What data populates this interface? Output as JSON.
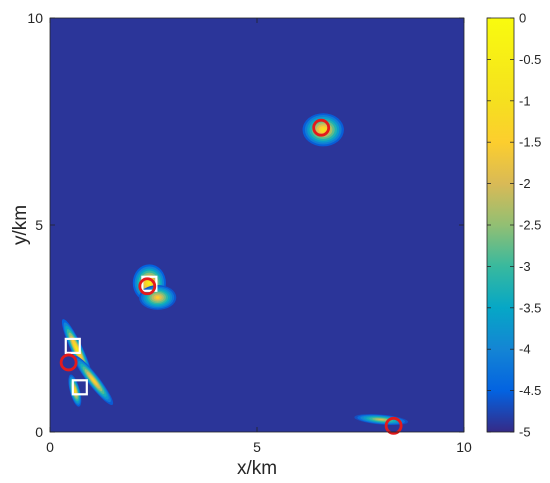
{
  "chart_data": {
    "type": "heatmap",
    "title": "",
    "xlabel": "x/km",
    "ylabel": "y/km",
    "xlim": [
      0,
      10
    ],
    "ylim": [
      0,
      10
    ],
    "x_ticks": [
      0,
      5,
      10
    ],
    "y_ticks": [
      0,
      5,
      10
    ],
    "x_tick_labels": [
      "0",
      "5",
      "10"
    ],
    "y_tick_labels": [
      "0",
      "5",
      "10"
    ],
    "colorbar": {
      "range": [
        -5,
        0
      ],
      "colormap": "parula",
      "ticks": [
        0,
        -0.5,
        -1,
        -1.5,
        -2,
        -2.5,
        -3,
        -3.5,
        -4,
        -4.5,
        -5
      ],
      "tick_labels": [
        "0",
        "-0.5",
        "-1",
        "-1.5",
        "-2",
        "-2.5",
        "-3",
        "-3.5",
        "-4",
        "-4.5",
        "-5"
      ]
    },
    "background_value": -5,
    "hotspots": [
      {
        "x": 6.6,
        "y": 7.3,
        "rx": 0.5,
        "ry": 0.4,
        "angle": 0,
        "peak": -1.0
      },
      {
        "x": 2.4,
        "y": 3.6,
        "rx": 0.4,
        "ry": 0.45,
        "angle": 0,
        "peak": -0.6
      },
      {
        "x": 2.6,
        "y": 3.25,
        "rx": 0.45,
        "ry": 0.3,
        "angle": 0,
        "peak": -1.5
      },
      {
        "x": 0.65,
        "y": 2.0,
        "rx": 0.14,
        "ry": 0.8,
        "angle": 25,
        "peak": -0.5
      },
      {
        "x": 1.05,
        "y": 1.25,
        "rx": 0.14,
        "ry": 0.75,
        "angle": 38,
        "peak": -1.2
      },
      {
        "x": 0.6,
        "y": 1.0,
        "rx": 0.12,
        "ry": 0.4,
        "angle": 15,
        "peak": -0.9
      },
      {
        "x": 8.0,
        "y": 0.3,
        "rx": 0.65,
        "ry": 0.12,
        "angle": -5,
        "peak": -2.0
      }
    ],
    "markers": {
      "circles": [
        {
          "x": 6.55,
          "y": 7.35
        },
        {
          "x": 2.35,
          "y": 3.52
        },
        {
          "x": 0.45,
          "y": 1.68
        },
        {
          "x": 8.3,
          "y": 0.15
        }
      ],
      "circle_color": "#e31a1c",
      "squares": [
        {
          "x": 2.4,
          "y": 3.58
        },
        {
          "x": 0.55,
          "y": 2.08
        },
        {
          "x": 0.72,
          "y": 1.08
        }
      ],
      "square_color": "#ffffff"
    }
  }
}
